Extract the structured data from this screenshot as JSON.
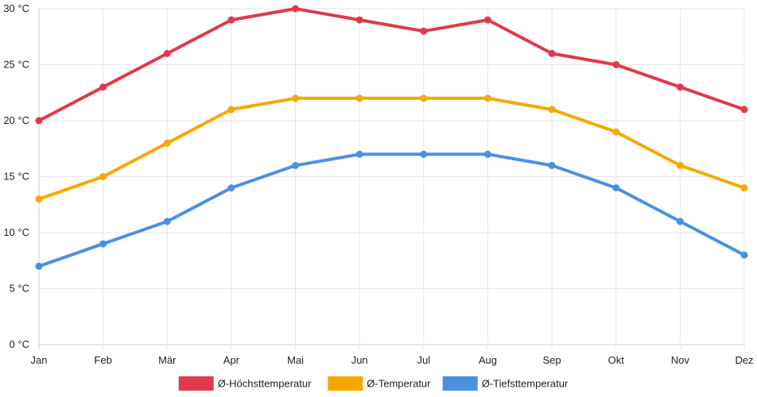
{
  "chart_data": {
    "type": "line",
    "title": "",
    "xlabel": "",
    "ylabel": "",
    "categories": [
      "Jan",
      "Feb",
      "Mär",
      "Apr",
      "Mai",
      "Jun",
      "Jul",
      "Aug",
      "Sep",
      "Okt",
      "Nov",
      "Dez"
    ],
    "ylim": [
      0,
      30
    ],
    "y_ticks": [
      0,
      5,
      10,
      15,
      20,
      25,
      30
    ],
    "y_tick_labels": [
      "0 °C",
      "5 °C",
      "10 °C",
      "15 °C",
      "20 °C",
      "25 °C",
      "30 °C"
    ],
    "grid": true,
    "legend_position": "bottom",
    "series": [
      {
        "name": "Ø-Höchsttemperatur",
        "color": "#e03a4a",
        "values": [
          20,
          23,
          26,
          29,
          30,
          29,
          28,
          29,
          26,
          25,
          23,
          21
        ]
      },
      {
        "name": "Ø-Temperatur",
        "color": "#f7a800",
        "values": [
          13,
          15,
          18,
          21,
          22,
          22,
          22,
          22,
          21,
          19,
          16,
          14
        ]
      },
      {
        "name": "Ø-Tiefsttemperatur",
        "color": "#4a90e2",
        "values": [
          7,
          9,
          11,
          14,
          16,
          17,
          17,
          17,
          16,
          14,
          11,
          8
        ]
      }
    ]
  }
}
